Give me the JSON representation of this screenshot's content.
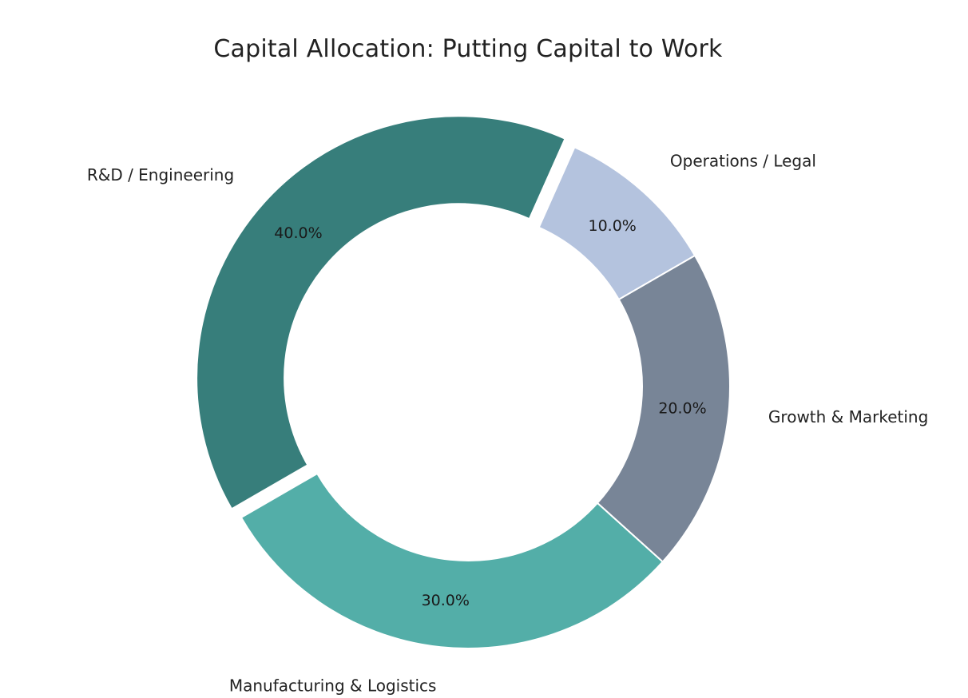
{
  "chart_data": {
    "type": "pie",
    "variant": "donut",
    "title": "Capital Allocation: Putting Capital to Work",
    "start_angle_deg": 210,
    "direction": "clockwise",
    "slices": [
      {
        "label": "R&D / Engineering",
        "value": 40.0,
        "pct_label": "40.0%",
        "color": "#377e7b",
        "exploded": true
      },
      {
        "label": "Operations / Legal",
        "value": 10.0,
        "pct_label": "10.0%",
        "color": "#b4c3de",
        "exploded": false
      },
      {
        "label": "Growth & Marketing",
        "value": 20.0,
        "pct_label": "20.0%",
        "color": "#788597",
        "exploded": false
      },
      {
        "label": "Manufacturing & Logistics",
        "value": 30.0,
        "pct_label": "30.0%",
        "color": "#53aea8",
        "exploded": false
      }
    ]
  }
}
